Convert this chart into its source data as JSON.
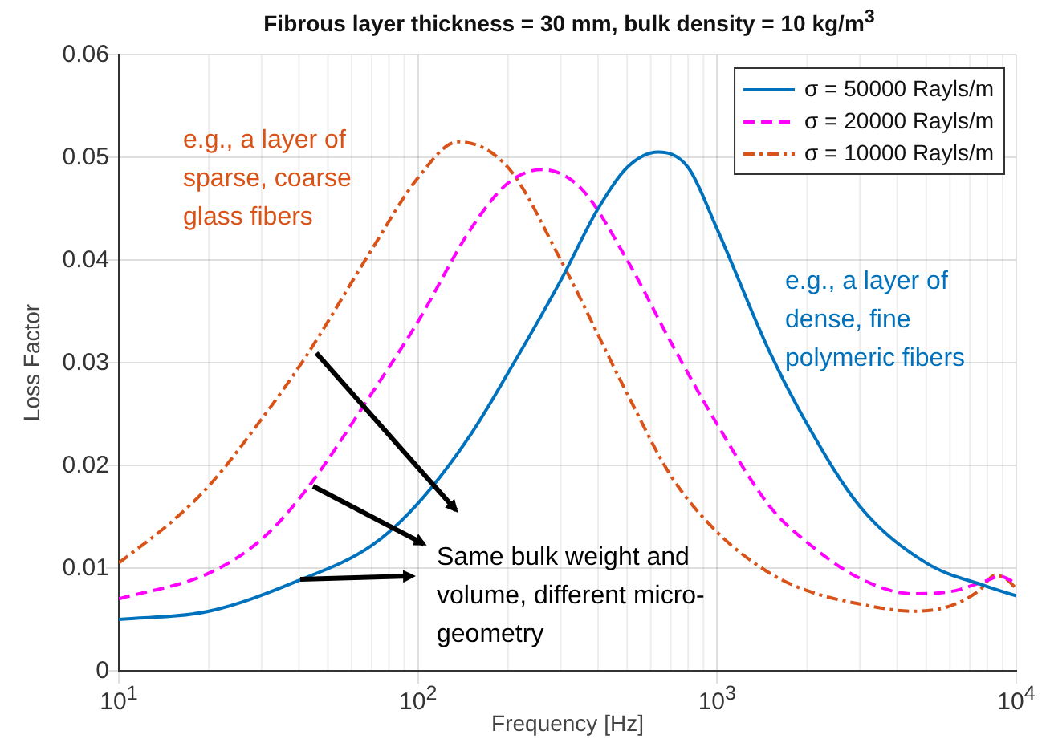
{
  "chart_data": {
    "type": "line",
    "title": "Fibrous layer thickness = 30 mm, bulk density = 10 kg/m$^{3}$",
    "xlabel": "Frequency [Hz]",
    "ylabel": "Loss Factor",
    "log": "x",
    "grid": true,
    "legend": "top right",
    "marker": "none",
    "xlim": [
      10,
      10000
    ],
    "xticks": [
      {
        "value": 10,
        "label": "10$^{1}$"
      },
      {
        "value": 100,
        "label": "10$^{2}$"
      },
      {
        "value": 1000,
        "label": "10$^{3}$"
      },
      {
        "value": 10000,
        "label": "10$^{4}$"
      }
    ],
    "ylim": [
      0,
      0.06
    ],
    "yticks": [
      0,
      0.01,
      0.02,
      0.03,
      0.04,
      0.05,
      0.06
    ],
    "series": [
      {
        "name": "σ = 50000 Rayls/m",
        "color": "#0072bd",
        "line_style": "solid",
        "x": [
          10,
          20,
          40,
          70,
          100,
          150,
          200,
          300,
          400,
          500,
          635,
          800,
          1000,
          1500,
          2000,
          3000,
          5000,
          8000,
          10000
        ],
        "values": [
          0.005,
          0.0058,
          0.0088,
          0.0122,
          0.0163,
          0.023,
          0.029,
          0.038,
          0.045,
          0.049,
          0.0505,
          0.049,
          0.043,
          0.031,
          0.024,
          0.016,
          0.0105,
          0.0082,
          0.0073
        ]
      },
      {
        "name": "σ = 20000 Rayls/m",
        "color": "#ff00ff",
        "line_style": "dashed",
        "x": [
          10,
          20,
          30,
          42,
          70,
          100,
          150,
          200,
          260,
          350,
          500,
          700,
          1000,
          1500,
          2000,
          3000,
          4500,
          6000,
          8000,
          8800,
          10000
        ],
        "values": [
          0.007,
          0.0095,
          0.0128,
          0.0175,
          0.027,
          0.034,
          0.043,
          0.0475,
          0.0488,
          0.047,
          0.04,
          0.032,
          0.024,
          0.016,
          0.0125,
          0.009,
          0.0075,
          0.0077,
          0.0088,
          0.0092,
          0.0085
        ]
      },
      {
        "name": "σ = 10000 Rayls/m",
        "color": "#d95319",
        "line_style": "dashdot",
        "x": [
          10,
          15,
          20,
          30,
          42,
          70,
          100,
          136,
          200,
          300,
          500,
          700,
          1000,
          1500,
          2000,
          3000,
          4500,
          6000,
          7500,
          8500,
          9200,
          10000
        ],
        "values": [
          0.0105,
          0.0145,
          0.018,
          0.0245,
          0.0305,
          0.041,
          0.048,
          0.0515,
          0.049,
          0.04,
          0.027,
          0.019,
          0.0135,
          0.0095,
          0.0078,
          0.0065,
          0.0058,
          0.0063,
          0.0078,
          0.0093,
          0.009,
          0.008
        ]
      }
    ],
    "annotations": [
      "e.g., a layer of sparse, coarse glass fibers",
      "e.g., a layer of dense, fine polymeric fibers",
      "Same bulk weight and volume, different micro-geometry"
    ]
  }
}
